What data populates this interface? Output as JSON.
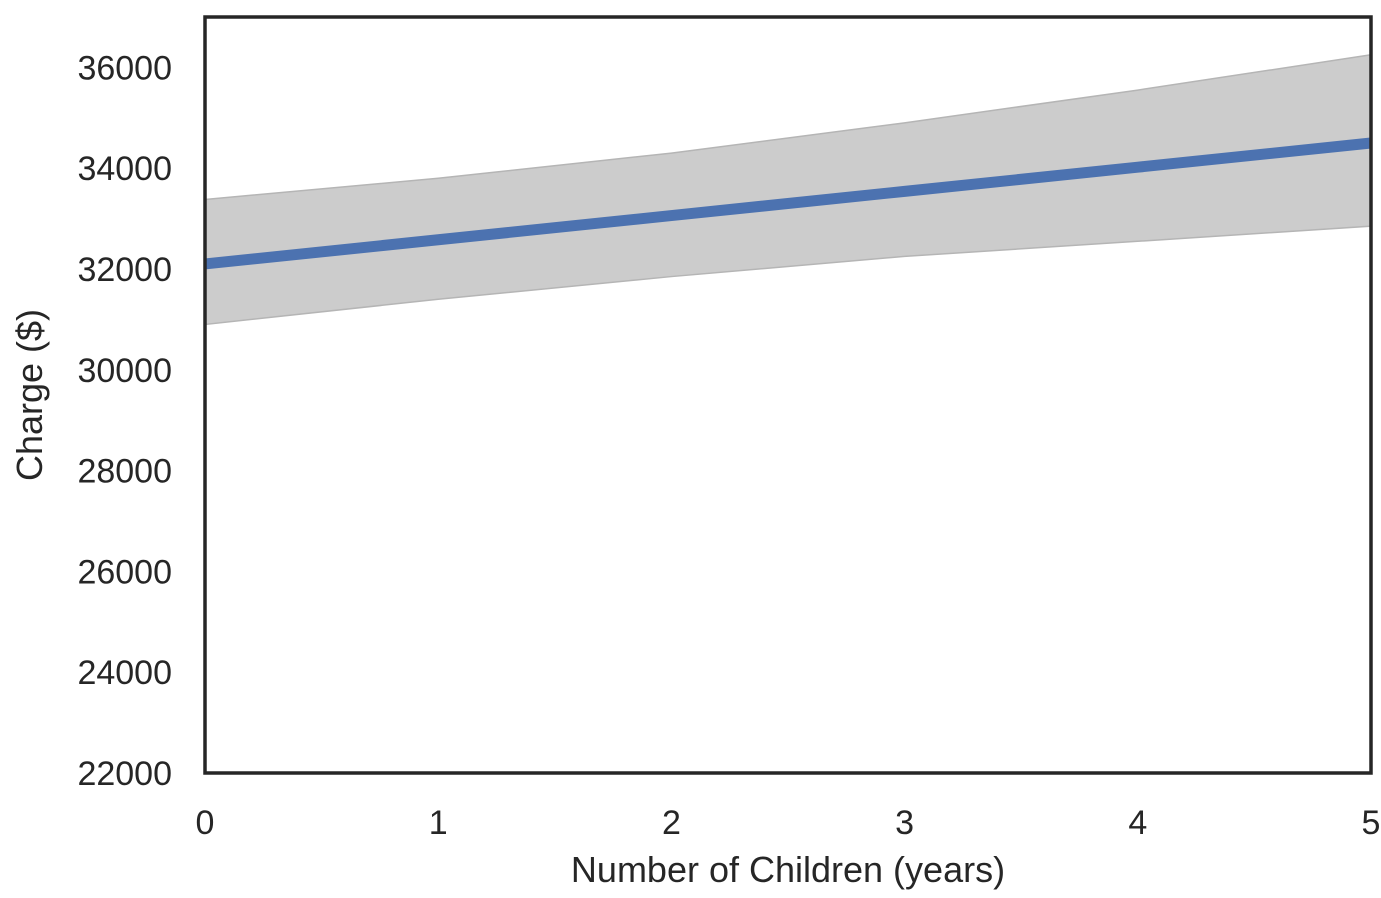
{
  "chart_data": {
    "type": "line",
    "title": "",
    "xlabel": "Number of Children (years)",
    "ylabel": "Charge ($)",
    "xlim": [
      0,
      5
    ],
    "ylim": [
      22000,
      37000
    ],
    "x_ticks": [
      0,
      1,
      2,
      3,
      4,
      5
    ],
    "y_ticks": [
      22000,
      24000,
      26000,
      28000,
      30000,
      32000,
      34000,
      36000
    ],
    "grid": false,
    "legend": "none",
    "series": [
      {
        "x": [
          0,
          1,
          2,
          3,
          4,
          5
        ],
        "values": [
          32100,
          32580,
          33060,
          33540,
          34020,
          34500
        ],
        "ci_lower": [
          30900,
          31400,
          31850,
          32250,
          32550,
          32850
        ],
        "ci_upper": [
          33380,
          33800,
          34300,
          34900,
          35550,
          36250
        ],
        "color": "#4c72b0",
        "band_color": "#cccccc"
      }
    ]
  }
}
